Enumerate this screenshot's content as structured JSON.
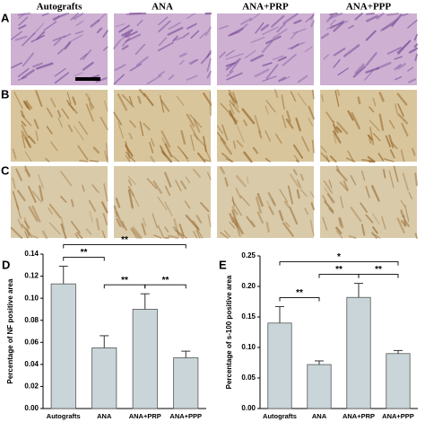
{
  "figure": {
    "column_headers": [
      "Autografts",
      "ANA",
      "ANA+PRP",
      "ANA+PPP"
    ],
    "row_labels": [
      "A",
      "B",
      "C"
    ]
  },
  "chart_data": [
    {
      "type": "bar",
      "panel": "D",
      "ylabel": "Percentage of NF positive area",
      "categories": [
        "Autografts",
        "ANA",
        "ANA+PRP",
        "ANA+PPP"
      ],
      "values": [
        0.113,
        0.055,
        0.09,
        0.046
      ],
      "errors": [
        0.016,
        0.011,
        0.014,
        0.006
      ],
      "color": "#c9d5d9",
      "ylim": [
        0,
        0.14
      ],
      "yticks": [
        {
          "value": 0,
          "label": "0.00"
        },
        0.02,
        0.04,
        0.06,
        0.08,
        {
          "value": 0.1,
          "label": "0.10"
        },
        0.12,
        0.14
      ],
      "annotations": [
        {
          "label": "**",
          "between": [
            "Autografts",
            "ANA"
          ]
        },
        {
          "label": "**",
          "between": [
            "ANA",
            "ANA+PRP"
          ]
        },
        {
          "label": "**",
          "between": [
            "ANA+PRP",
            "ANA+PPP"
          ]
        },
        {
          "label": "**",
          "between": [
            "Autografts",
            "ANA+PPP"
          ]
        }
      ]
    },
    {
      "type": "bar",
      "panel": "E",
      "ylabel": "Percentage of s-100 positive area",
      "categories": [
        "Autografts",
        "ANA",
        "ANA+PRP",
        "ANA+PPP"
      ],
      "values": [
        0.14,
        0.072,
        0.182,
        0.09
      ],
      "errors": [
        0.027,
        0.006,
        0.023,
        0.005
      ],
      "color": "#c9d5d9",
      "ylim": [
        0,
        0.25
      ],
      "yticks": [
        {
          "value": 0,
          "label": "0.00"
        },
        0.05,
        {
          "value": 0.1,
          "label": "0.10"
        },
        0.15,
        {
          "value": 0.2,
          "label": "0.20"
        },
        0.25
      ],
      "annotations": [
        {
          "label": "**",
          "between": [
            "Autografts",
            "ANA"
          ]
        },
        {
          "label": "**",
          "between": [
            "ANA",
            "ANA+PRP"
          ]
        },
        {
          "label": "**",
          "between": [
            "ANA+PRP",
            "ANA+PPP"
          ]
        },
        {
          "label": "*",
          "between": [
            "Autografts",
            "ANA+PPP"
          ]
        }
      ]
    }
  ]
}
